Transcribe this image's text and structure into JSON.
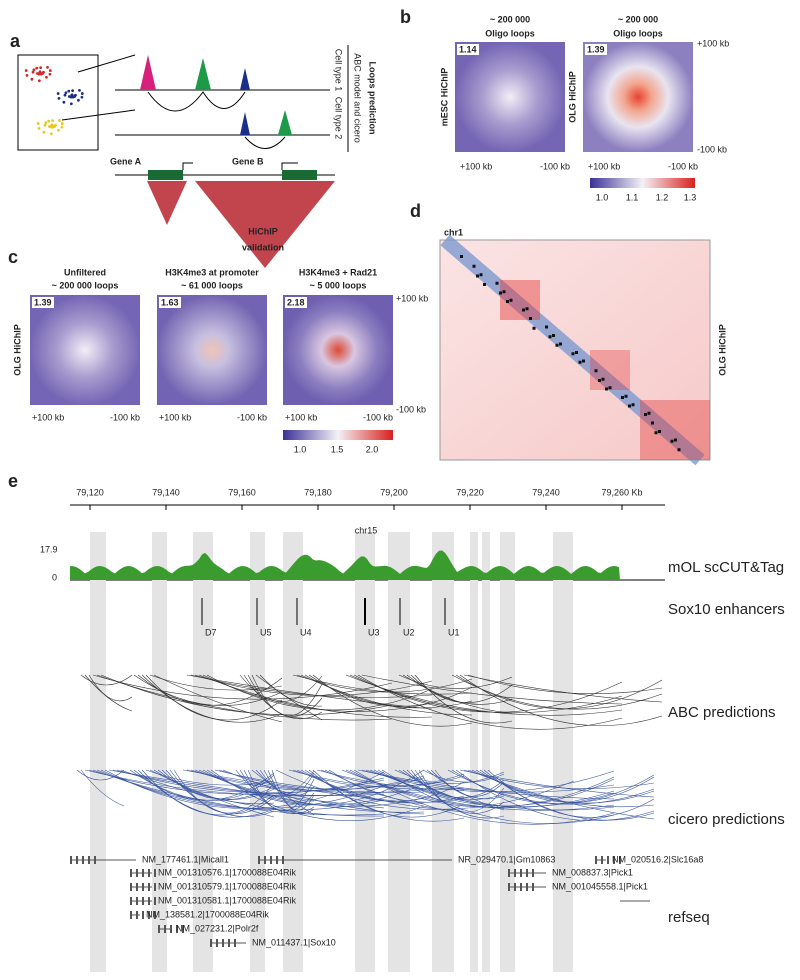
{
  "panel_a": {
    "label": "a",
    "title": "Loops prediction",
    "subtitle": "ABC model and cicero",
    "cell_types": [
      "Cell type 1",
      "Cell type 2"
    ],
    "genes": [
      "Gene A",
      "Gene B"
    ],
    "validation": [
      "HiChIP",
      "validation"
    ]
  },
  "panel_b": {
    "label": "b",
    "maps": [
      {
        "title": [
          "~ 200 000",
          "Oligo loops"
        ],
        "score": "1.14",
        "row_label": "mESC HiChIP"
      },
      {
        "title": [
          "~ 200 000",
          "Oligo loops"
        ],
        "score": "1.39",
        "row_label": "OLG HiChIP"
      }
    ],
    "axis": [
      "+100 kb",
      "-100 kb"
    ],
    "colorbar": [
      "1.0",
      "1.1",
      "1.2",
      "1.3"
    ]
  },
  "panel_c": {
    "label": "c",
    "row_label": "OLG HiChIP",
    "maps": [
      {
        "title": [
          "Unfiltered",
          "~ 200 000 loops"
        ],
        "score": "1.39"
      },
      {
        "title": [
          "H3K4me3 at promoter",
          "~ 61 000 loops"
        ],
        "score": "1.63"
      },
      {
        "title": [
          "H3K4me3 + Rad21",
          "~ 5 000 loops"
        ],
        "score": "2.18"
      }
    ],
    "axis": [
      "+100 kb",
      "-100 kb"
    ],
    "colorbar": [
      "1.0",
      "1.5",
      "2.0"
    ]
  },
  "panel_d": {
    "label": "d",
    "chrom": "chr1",
    "side_label": "OLG HiChIP"
  },
  "panel_e": {
    "label": "e",
    "axis": [
      "79,120",
      "79,140",
      "79,160",
      "79,180",
      "79,200",
      "79,220",
      "79,240",
      "79,260 Kb"
    ],
    "chrom": "chr15",
    "track_max": "17.9",
    "track_min": "0",
    "tracks": [
      "mOL scCUT&Tag",
      "Sox10 enhancers",
      "ABC predictions",
      "cicero predictions",
      "refseq"
    ],
    "enhancers": [
      "D7",
      "U5",
      "U4",
      "U3",
      "U2",
      "U1"
    ],
    "genes": [
      "NM_177461.1|Micall1",
      "NM_001310576.1|1700088E04Rik",
      "NM_001310579.1|1700088E04Rik",
      "NM_001310581.1|1700088E04Rik",
      "NM_138581.2|1700088E04Rik",
      "NM_027231.2|Polr2f",
      "NM_011437.1|Sox10",
      "NR_029470.1|Gm10863",
      "NM_020516.2|Slc16a8",
      "NM_008837.3|Pick1",
      "NM_001045558.1|Pick1"
    ]
  }
}
